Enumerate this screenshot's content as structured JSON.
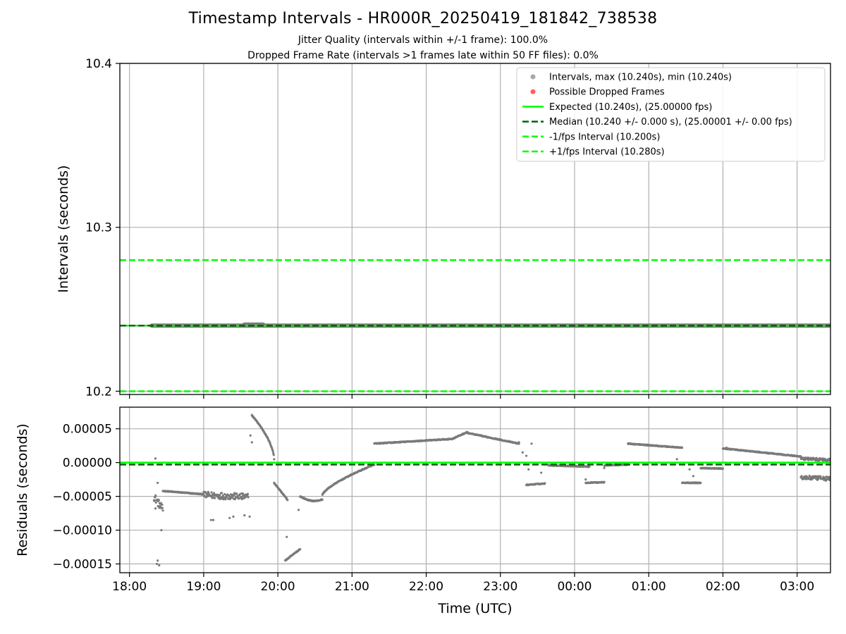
{
  "title": "Timestamp Intervals - HR000R_20250419_181842_738538",
  "subtitle_1": "Jitter Quality (intervals within +/-1 frame): 100.0%",
  "subtitle_2": "Dropped Frame Rate (intervals >1 frames late within 50 FF files): 0.0%",
  "colors": {
    "points": "#7a7a7a",
    "dropped": "#ff4d4d",
    "expected": "#00ff00",
    "median": "#006400",
    "grid": "#b0b0b0"
  },
  "chart_data": [
    {
      "type": "scatter",
      "id": "intervals",
      "ylabel": "Intervals (seconds)",
      "xlabel": "",
      "ylim": [
        10.198,
        10.4
      ],
      "xlim_hours": [
        17.87,
        27.45
      ],
      "x_ticks_hours": [
        18,
        19,
        20,
        21,
        22,
        23,
        24,
        25,
        26,
        27
      ],
      "x_tick_labels": [
        "18:00",
        "19:00",
        "20:00",
        "21:00",
        "22:00",
        "23:00",
        "00:00",
        "01:00",
        "02:00",
        "03:00"
      ],
      "y_ticks": [
        10.2,
        10.3,
        10.4
      ],
      "y_tick_labels": [
        "10.2",
        "10.3",
        "10.4"
      ],
      "grid": true,
      "legend_position": "top-right",
      "legend": [
        {
          "label": "Intervals, max (10.240s), min (10.240s)",
          "style": "point",
          "color": "#a8a8a8"
        },
        {
          "label": "Possible Dropped Frames",
          "style": "point",
          "color": "#ff6060"
        },
        {
          "label": "Expected (10.240s), (25.00000 fps)",
          "style": "solid",
          "color": "#00ff00"
        },
        {
          "label": "Median (10.240 +/- 0.000 s), (25.00001 +/- 0.00 fps)",
          "style": "dashed",
          "color": "#006400"
        },
        {
          "label": "-1/fps Interval (10.200s)",
          "style": "dashed",
          "color": "#00ff00"
        },
        {
          "label": "+1/fps Interval (10.280s)",
          "style": "dashed",
          "color": "#00ff00"
        }
      ],
      "lines": {
        "expected": 10.24,
        "median": 10.24,
        "minus_interval": 10.2,
        "plus_interval": 10.28
      },
      "series": [
        {
          "name": "Intervals, max (10.240s), min (10.240s)",
          "x_range_hours": [
            18.3,
            27.45
          ],
          "y": 10.24
        }
      ]
    },
    {
      "type": "scatter",
      "id": "residuals",
      "ylabel": "Residuals (seconds)",
      "xlabel": "Time (UTC)",
      "ylim": [
        -0.000163,
        8.2e-05
      ],
      "xlim_hours": [
        17.87,
        27.45
      ],
      "x_ticks_hours": [
        18,
        19,
        20,
        21,
        22,
        23,
        24,
        25,
        26,
        27
      ],
      "x_tick_labels": [
        "18:00",
        "19:00",
        "20:00",
        "21:00",
        "22:00",
        "23:00",
        "00:00",
        "01:00",
        "02:00",
        "03:00"
      ],
      "y_ticks": [
        5e-05,
        0.0,
        -5e-05,
        -0.0001,
        -0.00015
      ],
      "y_tick_labels": [
        "0.00005",
        "0.00000",
        "−0.00005",
        "−0.00010",
        "−0.00015"
      ],
      "grid": true,
      "lines": {
        "expected": 0.0,
        "median": -3e-06
      },
      "segments": [
        {
          "x": [
            18.33,
            18.45
          ],
          "y": [
            -5e-05,
            -7e-05
          ],
          "scatter": 1.2e-05
        },
        {
          "x": [
            18.45,
            19.0
          ],
          "y": [
            -4.2e-05,
            -4.7e-05
          ]
        },
        {
          "x": [
            19.0,
            19.6
          ],
          "y": [
            -4.8e-05,
            -5.1e-05
          ],
          "scatter": 1e-05
        },
        {
          "x": [
            19.65,
            19.95
          ],
          "y": [
            7e-05,
            5e-06
          ],
          "curve": "convex"
        },
        {
          "x": [
            19.95,
            20.13
          ],
          "y": [
            -3e-05,
            -5.5e-05
          ]
        },
        {
          "x": [
            20.1,
            20.3
          ],
          "y": [
            -0.000145,
            -0.000128
          ]
        },
        {
          "x": [
            20.3,
            20.6
          ],
          "y": [
            -5e-05,
            -5.5e-05
          ],
          "curve": "dip"
        },
        {
          "x": [
            20.6,
            21.3
          ],
          "y": [
            -4.8e-05,
            -3e-06
          ],
          "curve": "concave"
        },
        {
          "x": [
            21.3,
            22.35
          ],
          "y": [
            2.8e-05,
            3.5e-05
          ]
        },
        {
          "x": [
            22.35,
            22.55
          ],
          "y": [
            3.5e-05,
            4.5e-05
          ]
        },
        {
          "x": [
            22.55,
            23.25
          ],
          "y": [
            4.4e-05,
            2.8e-05
          ]
        },
        {
          "x": [
            23.35,
            23.6
          ],
          "y": [
            -3.3e-05,
            -3.1e-05
          ]
        },
        {
          "x": [
            23.65,
            24.2
          ],
          "y": [
            -4e-06,
            -6e-06
          ]
        },
        {
          "x": [
            24.15,
            24.4
          ],
          "y": [
            -3e-05,
            -2.9e-05
          ]
        },
        {
          "x": [
            24.4,
            24.72
          ],
          "y": [
            -4e-06,
            -3e-06
          ]
        },
        {
          "x": [
            24.72,
            25.45
          ],
          "y": [
            2.8e-05,
            2.2e-05
          ]
        },
        {
          "x": [
            25.45,
            25.7
          ],
          "y": [
            -3e-05,
            -3e-05
          ]
        },
        {
          "x": [
            25.7,
            26.0
          ],
          "y": [
            -8e-06,
            -9e-06
          ]
        },
        {
          "x": [
            26.0,
            27.05
          ],
          "y": [
            2.1e-05,
            9e-06
          ]
        },
        {
          "x": [
            27.05,
            27.45
          ],
          "y": [
            -2.2e-05,
            -2.4e-05
          ],
          "scatter": 6e-06
        },
        {
          "x": [
            27.05,
            27.45
          ],
          "y": [
            6e-06,
            4e-06
          ],
          "scatter": 4e-06
        }
      ],
      "outliers": [
        [
          18.35,
          6e-06
        ],
        [
          18.37,
          -0.00015
        ],
        [
          18.38,
          -0.000145
        ],
        [
          18.4,
          -0.000152
        ],
        [
          18.43,
          -0.0001
        ],
        [
          18.35,
          -6.8e-05
        ],
        [
          18.38,
          -3e-05
        ],
        [
          19.1,
          -8.5e-05
        ],
        [
          19.13,
          -8.5e-05
        ],
        [
          19.35,
          -8.2e-05
        ],
        [
          19.4,
          -8e-05
        ],
        [
          19.55,
          -7.8e-05
        ],
        [
          19.62,
          -8e-05
        ],
        [
          19.63,
          4e-05
        ],
        [
          19.65,
          3e-05
        ],
        [
          20.12,
          -0.00011
        ],
        [
          20.28,
          -7e-05
        ],
        [
          23.25,
          3e-05
        ],
        [
          23.3,
          1.5e-05
        ],
        [
          23.35,
          1e-05
        ],
        [
          23.38,
          -1e-05
        ],
        [
          23.42,
          2.8e-05
        ],
        [
          23.55,
          -1.5e-05
        ],
        [
          24.15,
          -2.5e-05
        ],
        [
          24.4,
          -8e-06
        ],
        [
          25.38,
          5e-06
        ],
        [
          25.55,
          -1e-05
        ],
        [
          25.6,
          -2e-05
        ],
        [
          26.05,
          2.2e-05
        ]
      ]
    }
  ]
}
